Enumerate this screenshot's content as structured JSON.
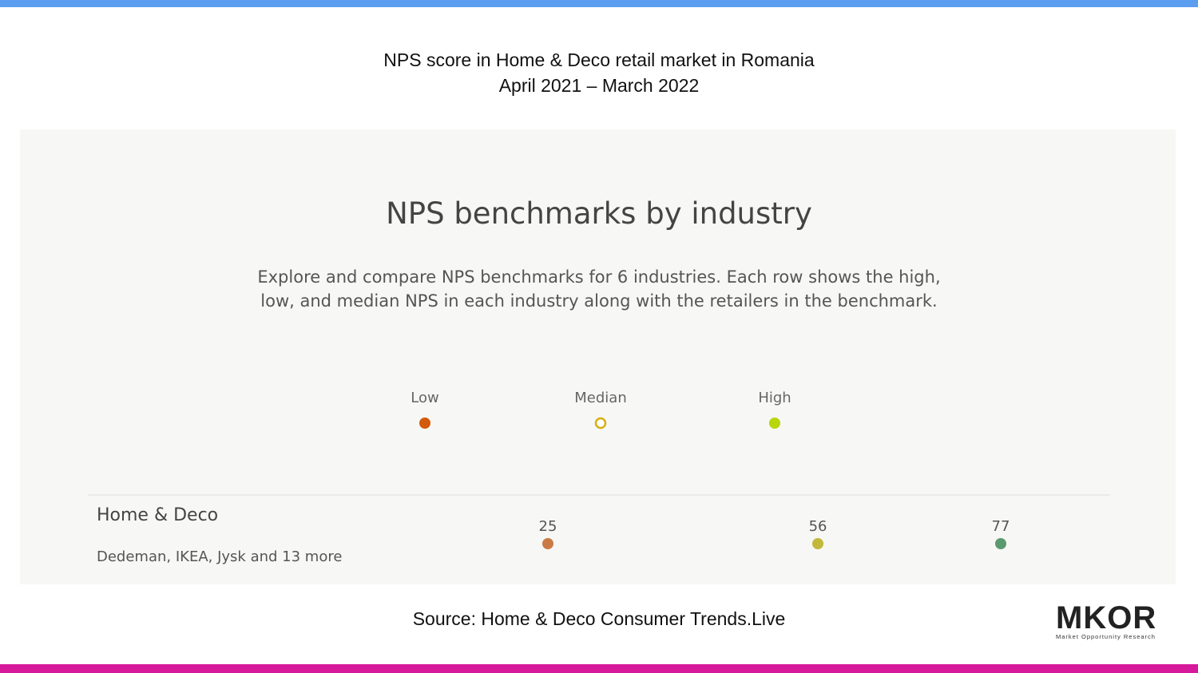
{
  "header": {
    "title": "NPS score in Home & Deco retail market in Romania",
    "subtitle": "April 2021 – March 2022"
  },
  "panel": {
    "title": "NPS benchmarks by industry",
    "description": "Explore and compare NPS benchmarks for 6 industries. Each row shows the high, low, and median NPS in each industry along with the retailers in the benchmark.",
    "legend": {
      "low": "Low",
      "median": "Median",
      "high": "High"
    }
  },
  "rows": [
    {
      "industry": "Home & Deco",
      "retailers": "Dedeman, IKEA, Jysk and 13 more",
      "low": 25,
      "median": 56,
      "high": 77
    }
  ],
  "footer": {
    "source": "Source: Home & Deco Consumer Trends.Live",
    "logo": "MKOR",
    "logo_tagline": "Market Opportunity Research"
  }
}
